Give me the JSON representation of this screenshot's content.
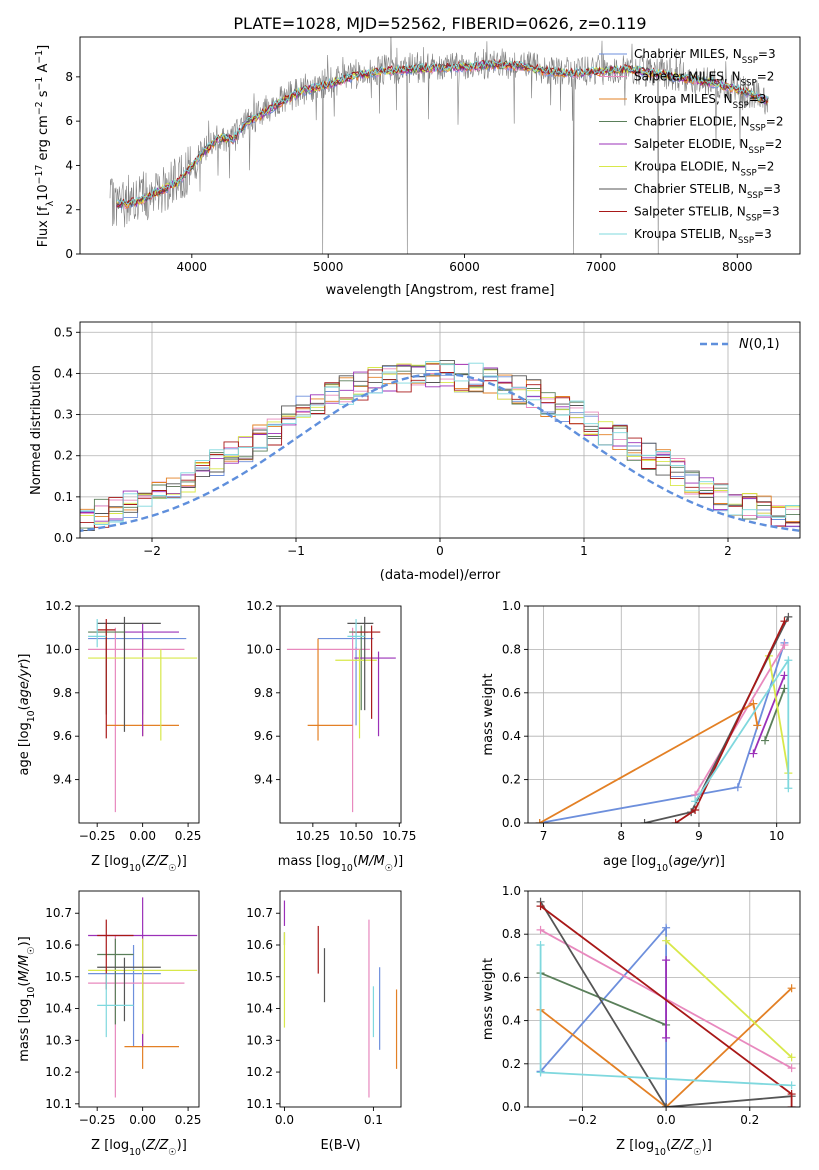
{
  "figure_title": "PLATE=1028, MJD=52562, FIBERID=0626, z=0.119",
  "colors": {
    "Chabrier MILES": "#6d8fdc",
    "Salpeter MILES": "#e889be",
    "Kroupa MILES": "#e38025",
    "Chabrier ELODIE": "#5a7f5a",
    "Salpeter ELODIE": "#9b30b8",
    "Kroupa ELODIE": "#d8e84a",
    "Chabrier STELIB": "#555555",
    "Salpeter STELIB": "#a81818",
    "Kroupa STELIB": "#7fd8de",
    "gaussian": "#5f8fdc",
    "data": "#808080"
  },
  "chart_data": [
    {
      "id": "spectrum",
      "type": "line",
      "title": "",
      "xlabel": "wavelength [Angstrom, rest frame]",
      "ylabel": "Flux [f_λ10^-17 erg cm^-2 s^-1 A^-1]",
      "xlim": [
        3180,
        8460
      ],
      "ylim": [
        0,
        9.8
      ],
      "xticks": [
        4000,
        5000,
        6000,
        7000,
        8000
      ],
      "yticks": [
        0,
        2,
        4,
        6,
        8
      ],
      "grid": false,
      "legend_position": "right",
      "continuum": {
        "x": [
          3400,
          3500,
          3600,
          3700,
          3800,
          3900,
          4000,
          4100,
          4200,
          4300,
          4400,
          4500,
          4600,
          4800,
          5000,
          5200,
          5400,
          5600,
          5800,
          6000,
          6200,
          6400,
          6600,
          6800,
          7000,
          7200,
          7400,
          7600,
          7800,
          8000,
          8200
        ],
        "y": [
          2.3,
          2.3,
          2.4,
          2.7,
          3.0,
          3.3,
          4.0,
          4.7,
          5.3,
          5.2,
          6.0,
          6.3,
          6.7,
          7.4,
          7.7,
          8.1,
          8.3,
          8.4,
          8.45,
          8.5,
          8.6,
          8.55,
          8.3,
          8.2,
          8.3,
          8.4,
          8.2,
          8.0,
          7.8,
          7.5,
          7.0
        ]
      },
      "series": [
        {
          "name": "Chabrier MILES",
          "nssp": "3"
        },
        {
          "name": "Salpeter MILES",
          "nssp": "2"
        },
        {
          "name": "Kroupa MILES",
          "nssp": "3"
        },
        {
          "name": "Chabrier ELODIE",
          "nssp": "2"
        },
        {
          "name": "Salpeter ELODIE",
          "nssp": "2"
        },
        {
          "name": "Kroupa ELODIE",
          "nssp": "2"
        },
        {
          "name": "Chabrier STELIB",
          "nssp": "3"
        },
        {
          "name": "Salpeter STELIB",
          "nssp": "3"
        },
        {
          "name": "Kroupa STELIB",
          "nssp": "3"
        }
      ]
    },
    {
      "id": "residuals",
      "type": "histogram",
      "xlabel": "(data-model)/error",
      "ylabel": "Normed distribution",
      "xlim": [
        -2.5,
        2.5
      ],
      "ylim": [
        0,
        0.525
      ],
      "xticks": [
        -2,
        -1,
        0,
        1,
        2
      ],
      "yticks": [
        0.0,
        0.1,
        0.2,
        0.3,
        0.4,
        0.5
      ],
      "grid": true,
      "legend_position": "top-right",
      "legend_label": "N(0,1)",
      "bin_width": 0.1,
      "base": [
        0.02,
        0.025,
        0.03,
        0.035,
        0.04,
        0.045,
        0.05,
        0.06,
        0.07,
        0.08,
        0.095,
        0.11,
        0.125,
        0.14,
        0.16,
        0.18,
        0.2,
        0.22,
        0.24,
        0.26,
        0.29,
        0.31,
        0.33,
        0.35,
        0.36,
        0.37,
        0.38,
        0.39,
        0.39,
        0.4,
        0.4,
        0.4,
        0.39,
        0.39,
        0.38,
        0.37,
        0.36,
        0.35,
        0.33,
        0.31,
        0.3,
        0.28,
        0.26,
        0.24,
        0.22,
        0.2,
        0.18,
        0.16,
        0.14,
        0.12,
        0.1,
        0.09,
        0.08,
        0.07,
        0.06,
        0.05,
        0.045,
        0.04,
        0.035,
        0.03,
        0.025,
        0.02
      ]
    },
    {
      "id": "age_vs_Z",
      "type": "errorbar",
      "xlabel": "Z [log10(Z/Z☉)]",
      "ylabel": "age [log10(age/yr)]",
      "xlim": [
        -0.35,
        0.31
      ],
      "ylim": [
        9.2,
        10.2
      ],
      "xticks": [
        -0.25,
        0.0,
        0.25
      ],
      "xticklabels": [
        "−0.25",
        "0.00",
        "0.25"
      ],
      "yticks": [
        9.4,
        9.6,
        9.8,
        10.0,
        10.2
      ],
      "points": [
        {
          "series": "Chabrier MILES",
          "x": 0.0,
          "y": 10.05,
          "xerr": [
            0.3,
            0.24
          ],
          "yerr": [
            0.35,
            0.02
          ]
        },
        {
          "series": "Salpeter MILES",
          "x": -0.15,
          "y": 10.0,
          "xerr": [
            0.15,
            0.38
          ],
          "yerr": [
            0.75,
            0.1
          ]
        },
        {
          "series": "Kroupa MILES",
          "x": 0.0,
          "y": 9.65,
          "xerr": [
            0.2,
            0.2
          ],
          "yerr": [
            0.05,
            0.4
          ]
        },
        {
          "series": "Chabrier ELODIE",
          "x": -0.2,
          "y": 10.08,
          "xerr": [
            0.1,
            0.1
          ],
          "yerr": [
            0.38,
            0.04
          ]
        },
        {
          "series": "Salpeter ELODIE",
          "x": 0.0,
          "y": 10.08,
          "xerr": [
            0.1,
            0.2
          ],
          "yerr": [
            0.48,
            0.04
          ]
        },
        {
          "series": "Kroupa ELODIE",
          "x": 0.1,
          "y": 9.96,
          "xerr": [
            0.4,
            0.2
          ],
          "yerr": [
            0.38,
            0.04
          ]
        },
        {
          "series": "Chabrier STELIB",
          "x": -0.1,
          "y": 10.12,
          "xerr": [
            0.15,
            0.2
          ],
          "yerr": [
            0.5,
            0.03
          ]
        },
        {
          "series": "Salpeter STELIB",
          "x": -0.2,
          "y": 10.09,
          "xerr": [
            0.05,
            0.05
          ],
          "yerr": [
            0.5,
            0.05
          ]
        },
        {
          "series": "Kroupa STELIB",
          "x": -0.25,
          "y": 10.06,
          "xerr": [
            0.05,
            0.05
          ],
          "yerr": [
            0.05,
            0.08
          ]
        }
      ]
    },
    {
      "id": "age_vs_mass",
      "type": "errorbar",
      "xlabel": "mass [log10(M/M☉)]",
      "ylabel": "",
      "xlim": [
        10.06,
        10.76
      ],
      "ylim": [
        9.2,
        10.2
      ],
      "xticks": [
        10.25,
        10.5,
        10.75
      ],
      "xticklabels": [
        "10.25",
        "10.50",
        "10.75"
      ],
      "yticks": [
        9.4,
        9.6,
        9.8,
        10.0,
        10.2
      ],
      "points": [
        {
          "series": "Chabrier MILES",
          "x": 10.5,
          "y": 10.05,
          "xerr": [
            0.22,
            0.1
          ],
          "yerr": [
            0.4,
            0.03
          ]
        },
        {
          "series": "Salpeter MILES",
          "x": 10.48,
          "y": 10.0,
          "xerr": [
            0.38,
            0.1
          ],
          "yerr": [
            0.75,
            0.1
          ]
        },
        {
          "series": "Kroupa MILES",
          "x": 10.28,
          "y": 9.65,
          "xerr": [
            0.06,
            0.2
          ],
          "yerr": [
            0.07,
            0.4
          ]
        },
        {
          "series": "Chabrier ELODIE",
          "x": 10.53,
          "y": 10.08,
          "xerr": [
            0.07,
            0.04
          ],
          "yerr": [
            0.36,
            0.03
          ]
        },
        {
          "series": "Salpeter ELODIE",
          "x": 10.63,
          "y": 9.96,
          "xerr": [
            0.14,
            0.1
          ],
          "yerr": [
            0.36,
            0.03
          ]
        },
        {
          "series": "Kroupa ELODIE",
          "x": 10.52,
          "y": 9.95,
          "xerr": [
            0.14,
            0.1
          ],
          "yerr": [
            0.36,
            0.05
          ]
        },
        {
          "series": "Chabrier STELIB",
          "x": 10.55,
          "y": 10.12,
          "xerr": [
            0.1,
            0.05
          ],
          "yerr": [
            0.4,
            0.03
          ]
        },
        {
          "series": "Salpeter STELIB",
          "x": 10.59,
          "y": 10.08,
          "xerr": [
            0.1,
            0.05
          ],
          "yerr": [
            0.4,
            0.03
          ]
        },
        {
          "series": "Kroupa STELIB",
          "x": 10.5,
          "y": 10.06,
          "xerr": [
            0.05,
            0.05
          ],
          "yerr": [
            0.05,
            0.08
          ]
        }
      ]
    },
    {
      "id": "mass_weight_vs_age",
      "type": "line",
      "xlabel": "age [log10(age/yr)]",
      "ylabel": "mass weight",
      "xlim": [
        6.8,
        10.3
      ],
      "ylim": [
        0,
        1.0
      ],
      "xticks": [
        7,
        8,
        9,
        10
      ],
      "yticks": [
        0.0,
        0.2,
        0.4,
        0.6,
        0.8,
        1.0
      ],
      "grid": true,
      "series": [
        {
          "name": "Chabrier MILES",
          "x": [
            6.95,
            9.5,
            10.1
          ],
          "y": [
            0.0,
            0.165,
            0.83
          ]
        },
        {
          "name": "Salpeter MILES",
          "x": [
            8.95,
            10.1
          ],
          "y": [
            0.13,
            0.82
          ]
        },
        {
          "name": "Kroupa MILES",
          "x": [
            6.95,
            9.7,
            9.75
          ],
          "y": [
            0.0,
            0.55,
            0.45
          ]
        },
        {
          "name": "Chabrier ELODIE",
          "x": [
            9.85,
            10.1
          ],
          "y": [
            0.38,
            0.62
          ]
        },
        {
          "name": "Salpeter ELODIE",
          "x": [
            9.7,
            10.1
          ],
          "y": [
            0.32,
            0.68
          ]
        },
        {
          "name": "Kroupa ELODIE",
          "x": [
            9.9,
            10.15
          ],
          "y": [
            0.77,
            0.23
          ]
        },
        {
          "name": "Chabrier STELIB",
          "x": [
            8.3,
            8.9,
            10.15
          ],
          "y": [
            0.0,
            0.05,
            0.95
          ]
        },
        {
          "name": "Salpeter STELIB",
          "x": [
            8.7,
            8.95,
            10.1
          ],
          "y": [
            0.0,
            0.06,
            0.93
          ]
        },
        {
          "name": "Kroupa STELIB",
          "x": [
            8.95,
            10.15,
            10.15
          ],
          "y": [
            0.1,
            0.75,
            0.16
          ]
        }
      ]
    },
    {
      "id": "mass_vs_Z",
      "type": "errorbar",
      "xlabel": "Z [log10(Z/Z☉)]",
      "ylabel": "mass [log10(M/M☉)]",
      "xlim": [
        -0.35,
        0.31
      ],
      "ylim": [
        10.09,
        10.77
      ],
      "xticks": [
        -0.25,
        0.0,
        0.25
      ],
      "xticklabels": [
        "−0.25",
        "0.00",
        "0.25"
      ],
      "yticks": [
        10.1,
        10.2,
        10.3,
        10.4,
        10.5,
        10.6,
        10.7
      ],
      "points": [
        {
          "series": "Chabrier MILES",
          "x": -0.05,
          "y": 10.51,
          "xerr": [
            0.25,
            0.15
          ],
          "yerr": [
            0.23,
            0.09
          ]
        },
        {
          "series": "Salpeter MILES",
          "x": -0.15,
          "y": 10.48,
          "xerr": [
            0.15,
            0.38
          ],
          "yerr": [
            0.36,
            0.15
          ]
        },
        {
          "series": "Kroupa MILES",
          "x": 0.0,
          "y": 10.28,
          "xerr": [
            0.1,
            0.2
          ],
          "yerr": [
            0.07,
            0.25
          ]
        },
        {
          "series": "Chabrier ELODIE",
          "x": -0.15,
          "y": 10.57,
          "xerr": [
            0.1,
            0.1
          ],
          "yerr": [
            0.22,
            0.05
          ]
        },
        {
          "series": "Salpeter ELODIE",
          "x": 0.0,
          "y": 10.63,
          "xerr": [
            0.3,
            0.3
          ],
          "yerr": [
            0.35,
            0.12
          ]
        },
        {
          "series": "Kroupa ELODIE",
          "x": 0.0,
          "y": 10.52,
          "xerr": [
            0.3,
            0.3
          ],
          "yerr": [
            0.2,
            0.1
          ]
        },
        {
          "series": "Chabrier STELIB",
          "x": -0.1,
          "y": 10.53,
          "xerr": [
            0.15,
            0.2
          ],
          "yerr": [
            0.17,
            0.03
          ]
        },
        {
          "series": "Salpeter STELIB",
          "x": -0.2,
          "y": 10.63,
          "xerr": [
            0.05,
            0.15
          ],
          "yerr": [
            0.17,
            0.05
          ]
        },
        {
          "series": "Kroupa STELIB",
          "x": -0.2,
          "y": 10.41,
          "xerr": [
            0.05,
            0.15
          ],
          "yerr": [
            0.1,
            0.1
          ]
        }
      ]
    },
    {
      "id": "mass_vs_EBV",
      "type": "errorbar",
      "xlabel": "E(B-V)",
      "ylabel": "",
      "xlim": [
        -0.005,
        0.131
      ],
      "ylim": [
        10.09,
        10.77
      ],
      "xticks": [
        0.0,
        0.1
      ],
      "xticklabels": [
        "0.0",
        "0.1"
      ],
      "yticks": [
        10.1,
        10.2,
        10.3,
        10.4,
        10.5,
        10.6,
        10.7
      ],
      "points": [
        {
          "series": "Chabrier MILES",
          "x": 0.107,
          "y": 10.4,
          "yerr": [
            0.13,
            0.13
          ]
        },
        {
          "series": "Salpeter MILES",
          "x": 0.095,
          "y": 10.48,
          "yerr": [
            0.36,
            0.2
          ]
        },
        {
          "series": "Kroupa MILES",
          "x": 0.126,
          "y": 10.33,
          "yerr": [
            0.12,
            0.13
          ]
        },
        {
          "series": "Chabrier ELODIE",
          "x": 0.0,
          "y": 10.62,
          "yerr": [
            0.02,
            0.02
          ]
        },
        {
          "series": "Salpeter ELODIE",
          "x": 0.0,
          "y": 10.71,
          "yerr": [
            0.05,
            0.03
          ]
        },
        {
          "series": "Kroupa ELODIE",
          "x": 0.0,
          "y": 10.5,
          "yerr": [
            0.16,
            0.14
          ]
        },
        {
          "series": "Chabrier STELIB",
          "x": 0.045,
          "y": 10.5,
          "yerr": [
            0.08,
            0.09
          ]
        },
        {
          "series": "Salpeter STELIB",
          "x": 0.038,
          "y": 10.59,
          "yerr": [
            0.08,
            0.07
          ]
        },
        {
          "series": "Kroupa STELIB",
          "x": 0.1,
          "y": 10.36,
          "yerr": [
            0.05,
            0.11
          ]
        }
      ]
    },
    {
      "id": "mass_weight_vs_Z",
      "type": "line",
      "xlabel": "Z [log10(Z/Z☉)]",
      "ylabel": "mass weight",
      "xlim": [
        -0.33,
        0.32
      ],
      "ylim": [
        0,
        1.0
      ],
      "xticks": [
        -0.2,
        0.0,
        0.2
      ],
      "xticklabels": [
        "−0.2",
        "0.0",
        "0.2"
      ],
      "yticks": [
        0.0,
        0.2,
        0.4,
        0.6,
        0.8,
        1.0
      ],
      "grid": true,
      "series": [
        {
          "name": "Chabrier MILES",
          "x": [
            -0.3,
            0.0,
            0.0
          ],
          "y": [
            0.165,
            0.83,
            0.0
          ]
        },
        {
          "name": "Salpeter MILES",
          "x": [
            -0.3,
            0.3
          ],
          "y": [
            0.82,
            0.18
          ]
        },
        {
          "name": "Kroupa MILES",
          "x": [
            -0.3,
            0.0,
            0.3
          ],
          "y": [
            0.45,
            0.0,
            0.55
          ]
        },
        {
          "name": "Chabrier ELODIE",
          "x": [
            -0.3,
            0.0
          ],
          "y": [
            0.62,
            0.38
          ]
        },
        {
          "name": "Salpeter ELODIE",
          "x": [
            0.0,
            0.0
          ],
          "y": [
            0.68,
            0.32
          ]
        },
        {
          "name": "Kroupa ELODIE",
          "x": [
            0.0,
            0.3
          ],
          "y": [
            0.77,
            0.23
          ]
        },
        {
          "name": "Chabrier STELIB",
          "x": [
            -0.3,
            0.0,
            0.3
          ],
          "y": [
            0.95,
            0.0,
            0.05
          ]
        },
        {
          "name": "Salpeter STELIB",
          "x": [
            -0.3,
            0.3,
            0.3
          ],
          "y": [
            0.93,
            0.06,
            0.0
          ]
        },
        {
          "name": "Kroupa STELIB",
          "x": [
            -0.3,
            -0.3,
            0.3
          ],
          "y": [
            0.75,
            0.16,
            0.1
          ]
        }
      ]
    }
  ]
}
